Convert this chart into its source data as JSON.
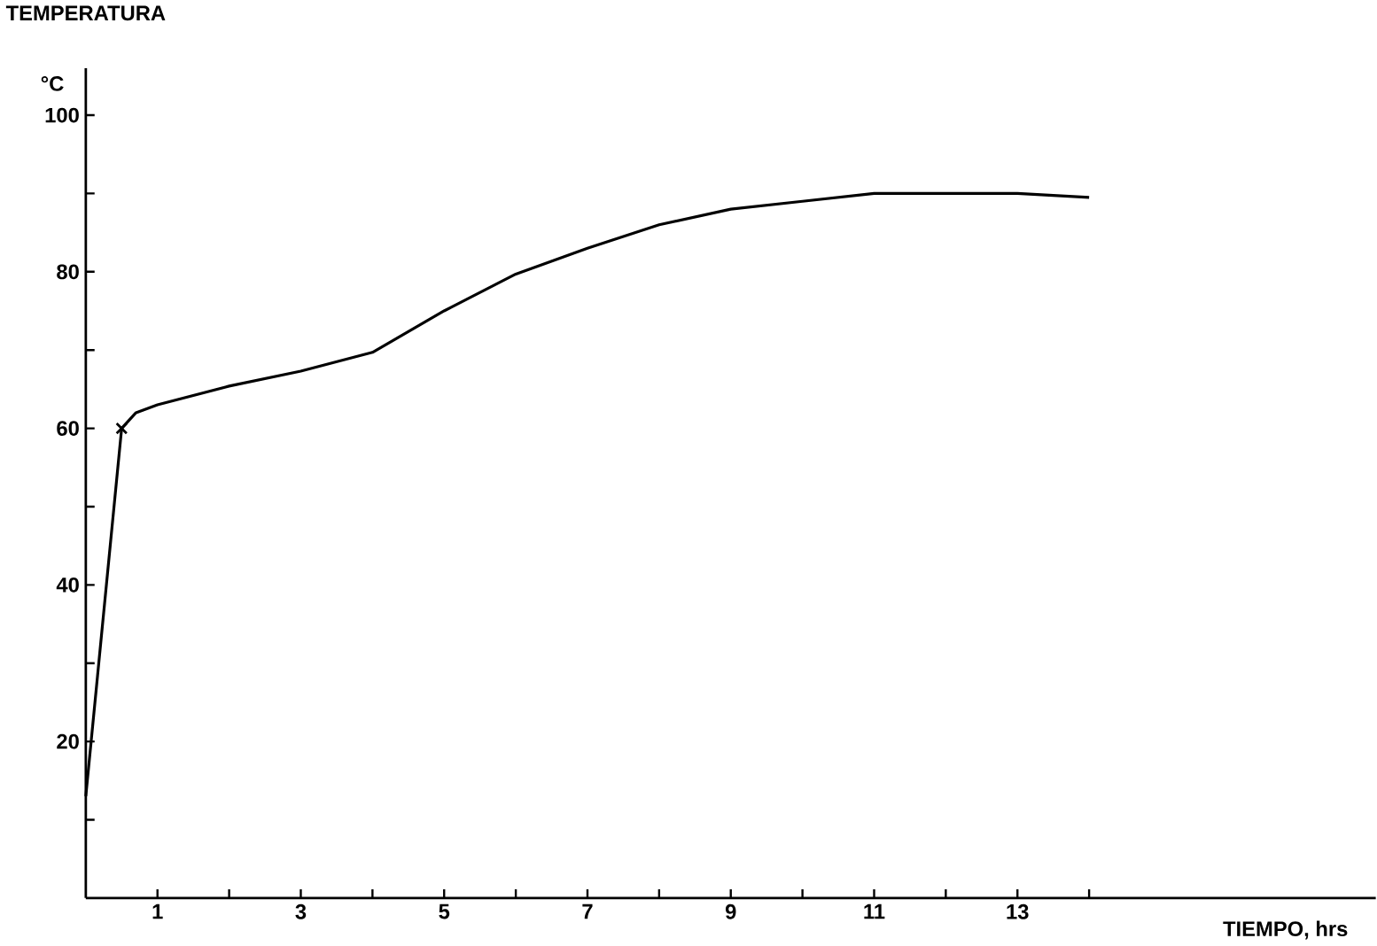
{
  "chart_data": {
    "type": "line",
    "ylabel": "TEMPERATURA",
    "xlabel": "TIEMPO, hrs",
    "annotations": [
      "°C"
    ],
    "xlim": [
      0,
      18
    ],
    "ylim": [
      0,
      106
    ],
    "xticks": [
      1,
      {
        "value": 2,
        "label": null
      },
      3,
      {
        "value": 4,
        "label": null
      },
      5,
      {
        "value": 6,
        "label": null
      },
      7,
      {
        "value": 8,
        "label": null
      },
      9,
      {
        "value": 10,
        "label": null
      },
      11,
      {
        "value": 12,
        "label": null
      },
      13,
      {
        "value": 14,
        "label": null
      }
    ],
    "yticks": [
      {
        "value": 10,
        "label": null
      },
      20,
      {
        "value": 30,
        "label": null
      },
      40,
      {
        "value": 50,
        "label": null
      },
      60,
      {
        "value": 70,
        "label": null
      },
      80,
      {
        "value": 90,
        "label": null
      },
      100
    ],
    "grid": false,
    "series": [
      {
        "color": "#000000",
        "line_style": "solid",
        "marker": "none",
        "x": [
          0,
          0.5,
          0.7,
          1,
          2,
          3,
          4,
          5,
          6,
          7,
          8,
          9,
          10,
          11,
          12,
          13,
          14
        ],
        "values": [
          13,
          60,
          62,
          63,
          65.4,
          67.3,
          69.7,
          75,
          79.7,
          83,
          86,
          88,
          89,
          90,
          90,
          90,
          89.5
        ]
      },
      {
        "color": "#000000",
        "type": "scatter",
        "marker": "cross",
        "x": [
          0.5
        ],
        "values": [
          60
        ]
      }
    ]
  }
}
